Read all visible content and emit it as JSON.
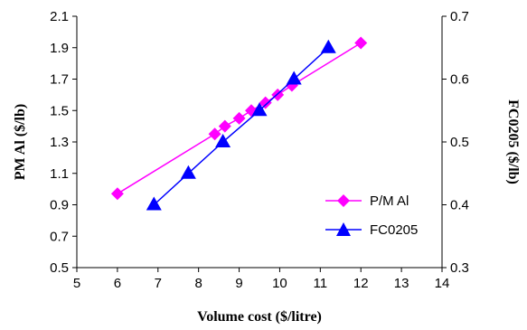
{
  "chart_data": {
    "type": "line",
    "xlabel": "Volume cost ($/litre)",
    "ylabel": "PM Al ($/lb)",
    "y2label": "FC0205 ($/lb)",
    "xlim": [
      5,
      14
    ],
    "ylim": [
      0.5,
      2.1
    ],
    "y2lim": [
      0.3,
      0.7
    ],
    "xticks": [
      "5",
      "6",
      "7",
      "8",
      "9",
      "10",
      "11",
      "12",
      "13",
      "14"
    ],
    "yticks": [
      "0.5",
      "0.7",
      "0.9",
      "1.1",
      "1.3",
      "1.5",
      "1.7",
      "1.9",
      "2.1"
    ],
    "y2ticks": [
      "0.3",
      "0.4",
      "0.5",
      "0.6",
      "0.7"
    ],
    "grid": false,
    "legend_position": "right-center",
    "series": [
      {
        "name": "P/M Al",
        "axis": "left",
        "color": "#ff00ff",
        "marker": "diamond",
        "points": [
          {
            "x": 6.0,
            "y": 0.97
          },
          {
            "x": 8.4,
            "y": 1.35
          },
          {
            "x": 8.65,
            "y": 1.4
          },
          {
            "x": 9.0,
            "y": 1.45
          },
          {
            "x": 9.3,
            "y": 1.5
          },
          {
            "x": 9.65,
            "y": 1.55
          },
          {
            "x": 9.95,
            "y": 1.6
          },
          {
            "x": 10.3,
            "y": 1.66
          },
          {
            "x": 12.0,
            "y": 1.93
          }
        ]
      },
      {
        "name": "FC0205",
        "axis": "right",
        "color": "#0000ff",
        "marker": "triangle",
        "points": [
          {
            "x": 6.9,
            "y": 0.4
          },
          {
            "x": 7.75,
            "y": 0.45
          },
          {
            "x": 8.6,
            "y": 0.5
          },
          {
            "x": 9.5,
            "y": 0.55
          },
          {
            "x": 10.35,
            "y": 0.6
          },
          {
            "x": 11.2,
            "y": 0.65
          }
        ]
      }
    ]
  }
}
